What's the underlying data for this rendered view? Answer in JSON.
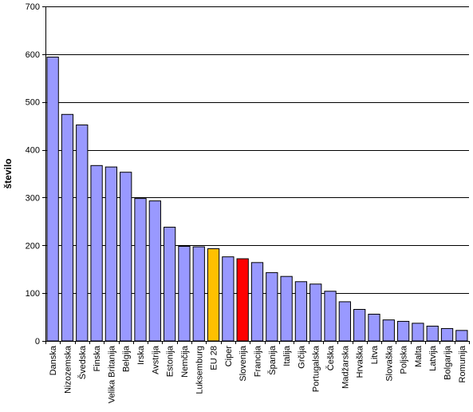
{
  "chart_data": {
    "type": "bar",
    "title": "",
    "xlabel": "",
    "ylabel": "število",
    "ylim": [
      0,
      700
    ],
    "yticks": [
      0,
      100,
      200,
      300,
      400,
      500,
      600,
      700
    ],
    "grid": true,
    "legend": "none",
    "categories": [
      "Danska",
      "Nizozemska",
      "Švedska",
      "Finska",
      "Velika Britanija",
      "Belgija",
      "Irska",
      "Avstrija",
      "Estonija",
      "Nemčija",
      "Luksemburg",
      "EU 28",
      "Ciper",
      "Slovenija",
      "Francija",
      "Španija",
      "Italija",
      "Grčija",
      "Portugalska",
      "Češka",
      "Madžarska",
      "Hrvaška",
      "Litva",
      "Slovaška",
      "Poljska",
      "Malta",
      "Latvija",
      "Bolgarija",
      "Romunija"
    ],
    "values": [
      594,
      474,
      452,
      367,
      364,
      353,
      298,
      293,
      238,
      198,
      197,
      193,
      176,
      172,
      164,
      143,
      135,
      124,
      119,
      104,
      82,
      66,
      56,
      44,
      41,
      37,
      31,
      26,
      22
    ],
    "colors": {
      "default": "#9999ff",
      "highlight_eu": "#ffc000",
      "highlight_si": "#ff0000",
      "grid": "#000000",
      "bar_stroke": "#000000"
    },
    "highlights": {
      "EU 28": "highlight_eu",
      "Slovenija": "highlight_si"
    }
  }
}
